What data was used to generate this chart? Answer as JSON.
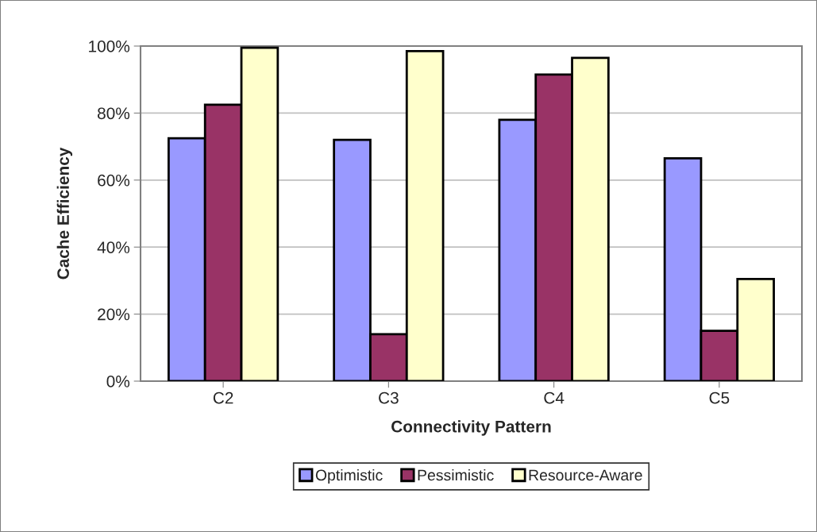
{
  "chart_data": {
    "type": "bar",
    "xlabel": "Connectivity Pattern",
    "ylabel": "Cache Efficiency",
    "categories": [
      "C2",
      "C3",
      "C4",
      "C5"
    ],
    "series": [
      {
        "name": "Optimistic",
        "color": "#9999ff",
        "values": [
          72.5,
          72,
          78,
          66.5
        ]
      },
      {
        "name": "Pessimistic",
        "color": "#993366",
        "values": [
          82.5,
          14,
          91.5,
          15
        ]
      },
      {
        "name": "Resource-Aware",
        "color": "#ffffcc",
        "values": [
          99.5,
          98.5,
          96.5,
          30.5
        ]
      }
    ],
    "ylim": [
      0,
      100
    ],
    "yticks": [
      {
        "value": 0,
        "label": "0%"
      },
      {
        "value": 20,
        "label": "20%"
      },
      {
        "value": 40,
        "label": "40%"
      },
      {
        "value": 60,
        "label": "60%"
      },
      {
        "value": 80,
        "label": "80%"
      },
      {
        "value": 100,
        "label": "100%"
      }
    ],
    "grid": "y",
    "legend": "bottom"
  }
}
